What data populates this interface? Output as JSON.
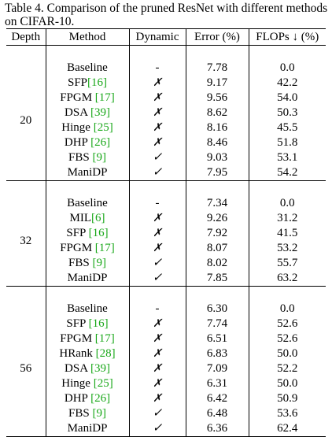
{
  "caption": "Table 4. Comparison of the pruned ResNet with different methods on CIFAR-10.",
  "headers": {
    "depth": "Depth",
    "method": "Method",
    "dynamic": "Dynamic",
    "error": "Error (%)",
    "flops": "FLOPs ↓ (%)"
  },
  "groups": [
    {
      "depth": "20",
      "rows": [
        {
          "method": "Baseline",
          "ref": "",
          "dynamic": "-",
          "error": "7.78",
          "flops": "0.0",
          "bold": false
        },
        {
          "method": "SFP",
          "ref": "[16]",
          "dynamic": "✗",
          "error": "9.17",
          "flops": "42.2",
          "bold": false
        },
        {
          "method": "FPGM ",
          "ref": "[17]",
          "dynamic": "✗",
          "error": "9.56",
          "flops": "54.0",
          "bold": false
        },
        {
          "method": "DSA ",
          "ref": "[39]",
          "dynamic": "✗",
          "error": "8.62",
          "flops": "50.3",
          "bold": false
        },
        {
          "method": "Hinge ",
          "ref": "[25]",
          "dynamic": "✗",
          "error": "8.16",
          "flops": "45.5",
          "bold": false
        },
        {
          "method": "DHP ",
          "ref": "[26]",
          "dynamic": "✗",
          "error": "8.46",
          "flops": "51.8",
          "bold": false
        },
        {
          "method": "FBS ",
          "ref": "[9]",
          "dynamic": "✓",
          "error": "9.03",
          "flops": "53.1",
          "bold": false
        },
        {
          "method": "ManiDP",
          "ref": "",
          "dynamic": "✓",
          "error": "7.95",
          "flops": "54.2",
          "bold": true
        }
      ]
    },
    {
      "depth": "32",
      "rows": [
        {
          "method": "Baseline",
          "ref": "",
          "dynamic": "-",
          "error": "7.34",
          "flops": "0.0",
          "bold": false
        },
        {
          "method": "MIL",
          "ref": "[6]",
          "dynamic": "✗",
          "error": "9.26",
          "flops": "31.2",
          "bold": false
        },
        {
          "method": "SFP ",
          "ref": "[16]",
          "dynamic": "✗",
          "error": "7.92",
          "flops": "41.5",
          "bold": false
        },
        {
          "method": "FPGM ",
          "ref": "[17]",
          "dynamic": "✗",
          "error": "8.07",
          "flops": "53.2",
          "bold": false
        },
        {
          "method": "FBS ",
          "ref": "[9]",
          "dynamic": "✓",
          "error": "8.02",
          "flops": "55.7",
          "bold": false
        },
        {
          "method": "ManiDP",
          "ref": "",
          "dynamic": "✓",
          "error": "7.85",
          "flops": "63.2",
          "bold": true
        }
      ]
    },
    {
      "depth": "56",
      "rows": [
        {
          "method": "Baseline",
          "ref": "",
          "dynamic": "-",
          "error": "6.30",
          "flops": "0.0",
          "bold": false
        },
        {
          "method": "SFP ",
          "ref": "[16]",
          "dynamic": "✗",
          "error": "7.74",
          "flops": "52.6",
          "bold": false
        },
        {
          "method": "FPGM ",
          "ref": "[17]",
          "dynamic": "✗",
          "error": "6.51",
          "flops": "52.6",
          "bold": false
        },
        {
          "method": "HRank ",
          "ref": "[28]",
          "dynamic": "✗",
          "error": "6.83",
          "flops": "50.0",
          "bold": false
        },
        {
          "method": "DSA ",
          "ref": "[39]",
          "dynamic": "✗",
          "error": "7.09",
          "flops": "52.2",
          "bold": false
        },
        {
          "method": "Hinge ",
          "ref": "[25]",
          "dynamic": "✗",
          "error": "6.31",
          "flops": "50.0",
          "bold": false
        },
        {
          "method": "DHP ",
          "ref": "[26]",
          "dynamic": "✗",
          "error": "6.42",
          "flops": "50.9",
          "bold": false
        },
        {
          "method": "FBS ",
          "ref": "[9]",
          "dynamic": "✓",
          "error": "6.48",
          "flops": "53.6",
          "bold": false
        },
        {
          "method": "ManiDP",
          "ref": "",
          "dynamic": "✓",
          "error": "6.36",
          "flops": "62.4",
          "bold": true
        }
      ]
    }
  ],
  "colors": {
    "citation": "#1aa81a",
    "text": "#000000"
  }
}
